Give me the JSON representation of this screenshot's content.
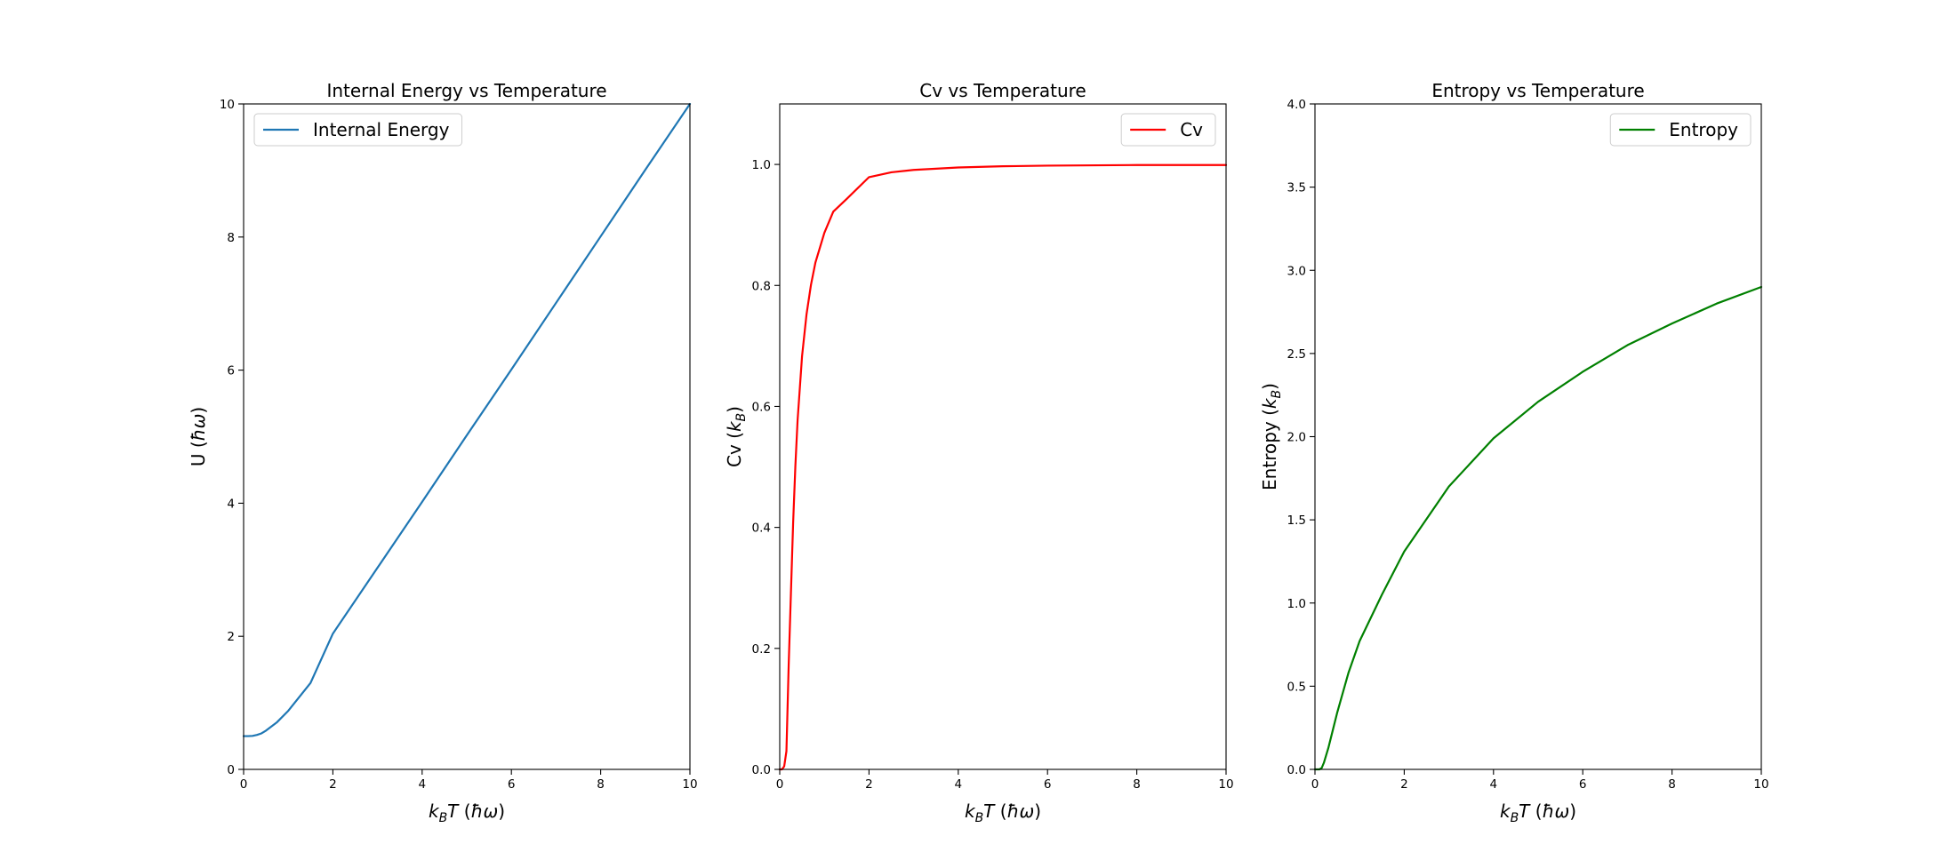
{
  "chart_data": [
    {
      "type": "line",
      "title": "Internal Energy vs Temperature",
      "xlabel": "k_B T (ħω)",
      "ylabel": "U (ħω)",
      "xlim": [
        0,
        10
      ],
      "ylim": [
        0,
        10
      ],
      "xticks": [
        "0",
        "2",
        "4",
        "6",
        "8",
        "10"
      ],
      "yticks": [
        "0",
        "2",
        "4",
        "6",
        "8",
        "10"
      ],
      "legend": "upper left",
      "series": [
        {
          "name": "Internal Energy",
          "color": "#1f77b4",
          "x": [
            0.0,
            0.1,
            0.2,
            0.3,
            0.4,
            0.5,
            0.75,
            1.0,
            1.5,
            2.0,
            3.0,
            4.0,
            5.0,
            6.0,
            7.0,
            8.0,
            9.0,
            10.0
          ],
          "y": [
            0.5,
            0.5,
            0.503,
            0.518,
            0.541,
            0.582,
            0.71,
            0.88,
            1.3,
            2.04,
            3.03,
            4.02,
            5.02,
            6.01,
            7.01,
            8.01,
            9.01,
            10.0
          ]
        }
      ]
    },
    {
      "type": "line",
      "title": "Cv vs Temperature",
      "xlabel": "k_B T (ħω)",
      "ylabel": "Cv (k_B)",
      "xlim": [
        0,
        10
      ],
      "ylim": [
        0,
        1.1
      ],
      "xticks": [
        "0",
        "2",
        "4",
        "6",
        "8",
        "10"
      ],
      "yticks": [
        "0.0",
        "0.2",
        "0.4",
        "0.6",
        "0.8",
        "1.0"
      ],
      "legend": "upper right",
      "series": [
        {
          "name": "Cv",
          "color": "#ff0000",
          "x": [
            0.0,
            0.05,
            0.1,
            0.15,
            0.2,
            0.25,
            0.3,
            0.35,
            0.4,
            0.5,
            0.6,
            0.7,
            0.8,
            1.0,
            1.2,
            1.5,
            2.0,
            2.5,
            3.0,
            4.0,
            5.0,
            6.0,
            8.0,
            10.0
          ],
          "y": [
            0.0,
            0.0,
            0.005,
            0.03,
            0.171,
            0.29,
            0.407,
            0.501,
            0.577,
            0.683,
            0.752,
            0.801,
            0.838,
            0.887,
            0.922,
            0.943,
            0.979,
            0.987,
            0.991,
            0.995,
            0.997,
            0.998,
            0.999,
            0.999
          ]
        }
      ]
    },
    {
      "type": "line",
      "title": "Entropy vs Temperature",
      "xlabel": "k_B T (ħω)",
      "ylabel": "Entropy (k_B)",
      "xlim": [
        0,
        10
      ],
      "ylim": [
        0,
        4.0
      ],
      "xticks": [
        "0",
        "2",
        "4",
        "6",
        "8",
        "10"
      ],
      "yticks": [
        "0.0",
        "0.5",
        "1.0",
        "1.5",
        "2.0",
        "2.5",
        "3.0",
        "3.5",
        "4.0"
      ],
      "legend": "upper right",
      "series": [
        {
          "name": "Entropy",
          "color": "#008000",
          "x": [
            0.0,
            0.1,
            0.15,
            0.2,
            0.3,
            0.4,
            0.5,
            0.75,
            1.0,
            1.5,
            2.0,
            3.0,
            4.0,
            5.0,
            6.0,
            7.0,
            8.0,
            9.0,
            10.0
          ],
          "y": [
            0.0,
            0.0,
            0.008,
            0.04,
            0.129,
            0.236,
            0.343,
            0.58,
            0.771,
            1.05,
            1.31,
            1.7,
            1.99,
            2.21,
            2.39,
            2.55,
            2.68,
            2.8,
            2.9
          ]
        }
      ]
    }
  ]
}
